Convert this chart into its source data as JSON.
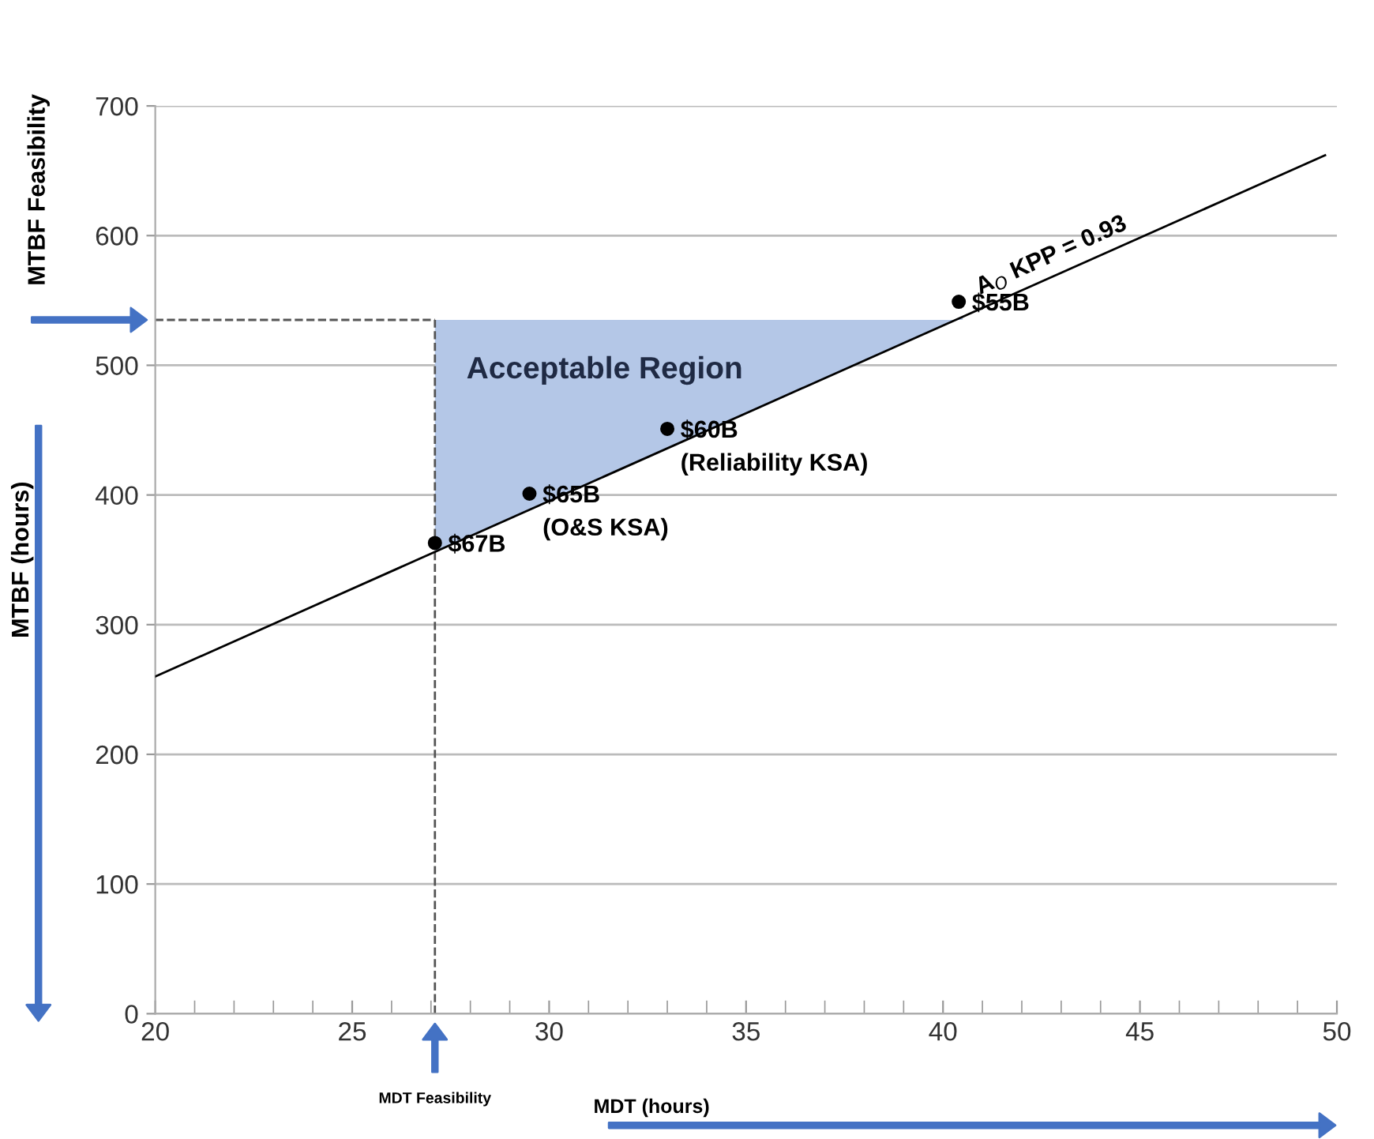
{
  "chart_data": {
    "type": "line",
    "xlabel": "MDT (hours)",
    "ylabel": "MTBF (hours)",
    "xlim": [
      20,
      50
    ],
    "ylim": [
      0,
      700
    ],
    "xticks": [
      20,
      25,
      30,
      35,
      40,
      45,
      50
    ],
    "yticks": [
      0,
      100,
      200,
      300,
      400,
      500,
      600,
      700
    ],
    "grid": "y",
    "series": [
      {
        "type": "area",
        "color": "#b4c7e7",
        "x": [
          27.1,
          40.5
        ],
        "values": [
          535,
          535
        ]
      },
      {
        "color": "#000000",
        "x": [
          20,
          49.7
        ],
        "values": [
          260,
          662
        ]
      },
      {
        "type": "scatter",
        "color": "#000000",
        "marker": "circle",
        "x": [
          27.1,
          29.5,
          33.0,
          40.4
        ],
        "values": [
          363,
          401,
          451,
          549
        ]
      }
    ],
    "ref_lines": [
      {
        "axis": "x",
        "value": 27.1,
        "line_style": "dashed",
        "color": "#555555"
      },
      {
        "axis": "y",
        "value": 535,
        "line_style": "dashed",
        "color": "#555555"
      }
    ],
    "annotations": [
      "Acceptable Region",
      "A$_{O}$ KPP = 0.93",
      "MTBF Feasibility",
      "MDT Feasibility",
      {
        "text": "$67B",
        "x": 27.1,
        "y": 363
      },
      {
        "text": "$65B\n(O&S KSA)",
        "x": 29.5,
        "y": 401
      },
      {
        "text": "$60B\n(Reliability KSA)",
        "x": 33.0,
        "y": 451
      },
      {
        "text": "$55B",
        "x": 40.4,
        "y": 549
      }
    ]
  }
}
